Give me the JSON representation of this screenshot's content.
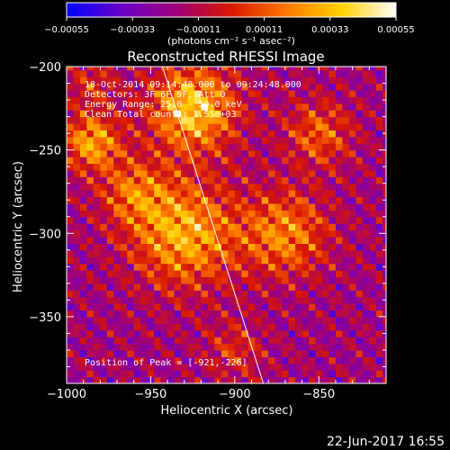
{
  "chart_data": {
    "type": "heatmap",
    "title": "Reconstructed RHESSI Image",
    "xlabel": "Heliocentric X (arcsec)",
    "ylabel": "Heliocentric Y (arcsec)",
    "xlim": [
      -1000,
      -810
    ],
    "ylim": [
      -390,
      -200
    ],
    "x_ticks": [
      {
        "value": -1000,
        "label": "−1000"
      },
      {
        "value": -950,
        "label": "−950"
      },
      {
        "value": -900,
        "label": "−900"
      },
      {
        "value": -850,
        "label": "−850"
      }
    ],
    "y_ticks": [
      {
        "value": -200,
        "label": "−200"
      },
      {
        "value": -250,
        "label": "−250"
      },
      {
        "value": -300,
        "label": "−300"
      },
      {
        "value": -350,
        "label": "−350"
      }
    ],
    "colorbar": {
      "range": [
        -0.00055,
        0.00055
      ],
      "tick_labels": [
        "−0.00055",
        "−0.00033",
        "−0.00011",
        "0.00011",
        "0.00033",
        "0.00055"
      ],
      "units_label": "(photons cm⁻² s⁻¹ asec⁻²)",
      "colors": [
        "#0000ff",
        "#6a00c8",
        "#a0007a",
        "#d81800",
        "#ff7800",
        "#ffd200",
        "#ffffff"
      ]
    },
    "info_lines": [
      "18-Oct-2014 09:14:48.000 to 09:24:48.000",
      "Detectors: 3F 6F 9F, Att 0",
      "Energy Range: 25.0 - 50.0 keV",
      "Clean    Total counts: 1.55e+03"
    ],
    "peak_label": "Position of Peak = [-921,-226]",
    "peak": {
      "x": -921,
      "y": -226
    },
    "limb_line": [
      {
        "x": -943,
        "y": -200
      },
      {
        "x": -883,
        "y": -390
      }
    ],
    "sources": [
      {
        "x": -985,
        "y": -245,
        "amp": 0.00045,
        "sigma": 12
      },
      {
        "x": -925,
        "y": -225,
        "amp": 0.00055,
        "sigma": 18
      },
      {
        "x": -930,
        "y": -300,
        "amp": 0.00048,
        "sigma": 22
      },
      {
        "x": -960,
        "y": -275,
        "amp": 0.0003,
        "sigma": 14
      },
      {
        "x": -870,
        "y": -300,
        "amp": 0.00038,
        "sigma": 18
      },
      {
        "x": -850,
        "y": -240,
        "amp": 0.0003,
        "sigma": 14
      },
      {
        "x": -985,
        "y": -210,
        "amp": 0.0002,
        "sigma": 10
      },
      {
        "x": -900,
        "y": -370,
        "amp": 0.0002,
        "sigma": 12
      }
    ]
  },
  "timestamp": "22-Jun-2017 16:55"
}
